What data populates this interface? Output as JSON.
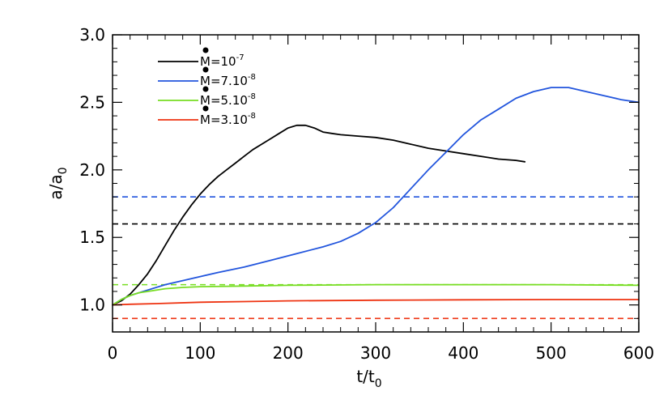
{
  "chart_data": {
    "type": "line",
    "title": "",
    "xlabel": {
      "main": "t/t",
      "sub": "0"
    },
    "ylabel": {
      "main": "a/a",
      "sub": "0"
    },
    "xlim": [
      0,
      600
    ],
    "ylim": [
      0.8,
      3.0
    ],
    "xticks": [
      0,
      100,
      200,
      300,
      400,
      500,
      600
    ],
    "xtick_labels": [
      "0",
      "100",
      "200",
      "300",
      "400",
      "500",
      "600"
    ],
    "yticks": [
      1.0,
      1.5,
      2.0,
      2.5,
      3.0
    ],
    "ytick_labels": [
      "1.0",
      "1.5",
      "2.0",
      "2.5",
      "3.0"
    ],
    "grid": false,
    "legend_position": "top-left",
    "series": [
      {
        "name": "Ṁ=10^-7",
        "legend": {
          "base": "M=10",
          "exp": "-7"
        },
        "color": "#000000",
        "x": [
          0,
          10,
          20,
          30,
          40,
          50,
          60,
          70,
          80,
          90,
          100,
          110,
          120,
          130,
          140,
          150,
          160,
          170,
          180,
          190,
          200,
          210,
          220,
          230,
          240,
          250,
          260,
          280,
          300,
          320,
          340,
          360,
          380,
          400,
          420,
          440,
          460,
          470
        ],
        "y": [
          1.0,
          1.03,
          1.08,
          1.15,
          1.23,
          1.33,
          1.44,
          1.55,
          1.65,
          1.74,
          1.82,
          1.89,
          1.95,
          2.0,
          2.05,
          2.1,
          2.15,
          2.19,
          2.23,
          2.27,
          2.31,
          2.33,
          2.33,
          2.31,
          2.28,
          2.27,
          2.26,
          2.25,
          2.24,
          2.22,
          2.19,
          2.16,
          2.14,
          2.12,
          2.1,
          2.08,
          2.07,
          2.06
        ]
      },
      {
        "name": "Ṁ=7.10^-8",
        "legend": {
          "base": "M=7.10",
          "exp": "-8"
        },
        "color": "#2255dd",
        "x": [
          0,
          10,
          20,
          40,
          60,
          80,
          100,
          120,
          150,
          180,
          210,
          240,
          260,
          280,
          300,
          320,
          340,
          360,
          380,
          400,
          420,
          440,
          460,
          480,
          500,
          520,
          540,
          560,
          580,
          600
        ],
        "y": [
          1.0,
          1.04,
          1.07,
          1.11,
          1.15,
          1.18,
          1.21,
          1.24,
          1.28,
          1.33,
          1.38,
          1.43,
          1.47,
          1.53,
          1.61,
          1.72,
          1.86,
          2.0,
          2.13,
          2.26,
          2.37,
          2.45,
          2.53,
          2.58,
          2.61,
          2.61,
          2.58,
          2.55,
          2.52,
          2.5
        ]
      },
      {
        "name": "Ṁ=5.10^-8",
        "legend": {
          "base": "M=5.10",
          "exp": "-8"
        },
        "color": "#77dd22",
        "x": [
          0,
          10,
          20,
          30,
          40,
          60,
          80,
          100,
          150,
          200,
          300,
          400,
          500,
          600
        ],
        "y": [
          1.0,
          1.04,
          1.07,
          1.09,
          1.1,
          1.12,
          1.13,
          1.135,
          1.14,
          1.145,
          1.15,
          1.15,
          1.15,
          1.145
        ]
      },
      {
        "name": "Ṁ=3.10^-8",
        "legend": {
          "base": "M=3.10",
          "exp": "-8"
        },
        "color": "#ee3311",
        "x": [
          0,
          20,
          50,
          100,
          150,
          200,
          300,
          400,
          500,
          600
        ],
        "y": [
          1.0,
          1.005,
          1.01,
          1.02,
          1.025,
          1.03,
          1.035,
          1.038,
          1.04,
          1.04
        ]
      }
    ],
    "reference_lines": [
      {
        "y": 1.8,
        "color": "#2255dd",
        "style": "dashed"
      },
      {
        "y": 1.6,
        "color": "#000000",
        "style": "dashed"
      },
      {
        "y": 1.15,
        "color": "#77dd22",
        "style": "dashed"
      },
      {
        "y": 0.9,
        "color": "#ee3311",
        "style": "dashed"
      }
    ]
  }
}
